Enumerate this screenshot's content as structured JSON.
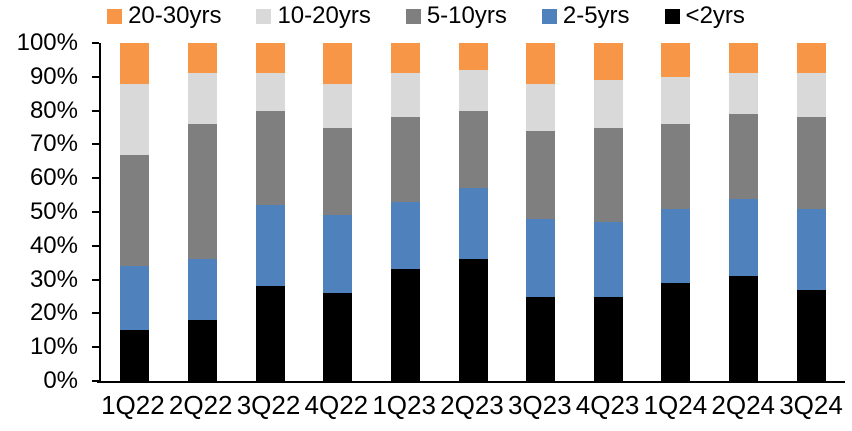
{
  "chart_data": {
    "type": "bar",
    "stacked": true,
    "stacked_100_percent": true,
    "title": "",
    "xlabel": "",
    "ylabel": "",
    "categories": [
      "1Q22",
      "2Q22",
      "3Q22",
      "4Q22",
      "1Q23",
      "2Q23",
      "3Q23",
      "4Q23",
      "1Q24",
      "2Q24",
      "3Q24"
    ],
    "series": [
      {
        "name": "<2yrs",
        "color": "#000000",
        "values": [
          15,
          18,
          28,
          26,
          33,
          36,
          25,
          25,
          29,
          31,
          27
        ]
      },
      {
        "name": "2-5yrs",
        "color": "#4F81BD",
        "values": [
          19,
          18,
          24,
          23,
          20,
          21,
          23,
          22,
          22,
          23,
          24
        ]
      },
      {
        "name": "5-10yrs",
        "color": "#7F7F7F",
        "values": [
          33,
          40,
          28,
          26,
          25,
          23,
          26,
          28,
          25,
          25,
          27
        ]
      },
      {
        "name": "10-20yrs",
        "color": "#D9D9D9",
        "values": [
          21,
          15,
          11,
          13,
          13,
          12,
          14,
          14,
          14,
          12,
          13
        ]
      },
      {
        "name": "20-30yrs",
        "color": "#F79646",
        "values": [
          12,
          9,
          9,
          12,
          9,
          8,
          12,
          11,
          10,
          9,
          9
        ]
      }
    ],
    "legend": [
      "20-30yrs",
      "10-20yrs",
      "5-10yrs",
      "2-5yrs",
      "<2yrs"
    ],
    "legend_position": "top",
    "yticks": [
      "100%",
      "90%",
      "80%",
      "70%",
      "60%",
      "50%",
      "40%",
      "30%",
      "20%",
      "10%",
      "0%"
    ],
    "ylim": [
      0,
      100
    ],
    "grid": false,
    "axis_color": "#000000",
    "background_color": "#FFFFFF"
  }
}
